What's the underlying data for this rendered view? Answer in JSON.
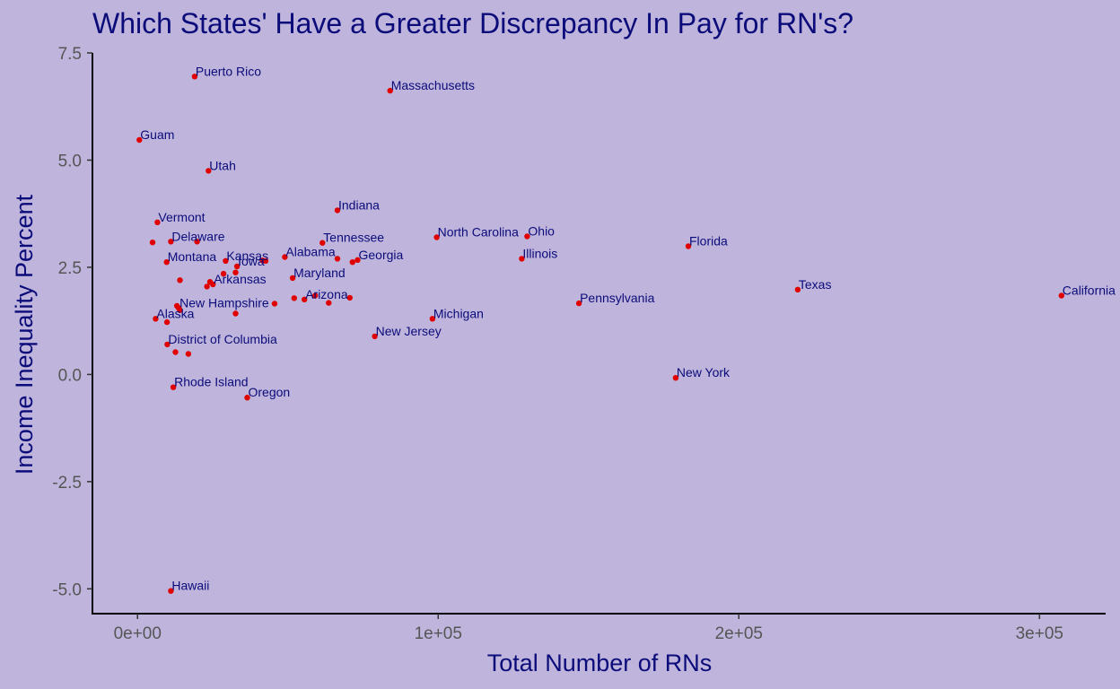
{
  "chart_data": {
    "type": "scatter",
    "title": "Which States' Have a Greater Discrepancy In Pay for RN's?",
    "xlabel": "Total Number of RNs",
    "ylabel": "Income Inequality Percent",
    "xlim": [
      -15000,
      322000
    ],
    "ylim": [
      -5.6,
      7.5
    ],
    "xticks": [
      0,
      100000,
      200000,
      300000
    ],
    "xtick_labels": [
      "0e+00",
      "1e+05",
      "2e+05",
      "3e+05"
    ],
    "yticks": [
      -5.0,
      -2.5,
      0.0,
      2.5,
      5.0,
      7.5
    ],
    "ytick_labels": [
      "-5.0",
      "-2.5",
      "0.0",
      "2.5",
      "5.0",
      "7.5"
    ],
    "grid": false,
    "point_color": "#e00000",
    "label_color": "#0b0b7a",
    "background": "#bfb5dc",
    "points": [
      {
        "label": "Puerto Rico",
        "x": 19000,
        "y": 6.95
      },
      {
        "label": "Massachusetts",
        "x": 84000,
        "y": 6.62
      },
      {
        "label": "Guam",
        "x": 600,
        "y": 5.47
      },
      {
        "label": "Utah",
        "x": 23600,
        "y": 4.75
      },
      {
        "label": "Indiana",
        "x": 66500,
        "y": 3.83
      },
      {
        "label": "Vermont",
        "x": 6600,
        "y": 3.55
      },
      {
        "label": "Delaware",
        "x": 11100,
        "y": 3.1
      },
      {
        "label": "Tennessee",
        "x": 61500,
        "y": 3.07
      },
      {
        "label": "North Carolina",
        "x": 99500,
        "y": 3.2
      },
      {
        "label": "Ohio",
        "x": 129600,
        "y": 3.22
      },
      {
        "label": "Florida",
        "x": 183200,
        "y": 2.99
      },
      {
        "label": "Montana",
        "x": 9700,
        "y": 2.62
      },
      {
        "label": "Kansas",
        "x": 29300,
        "y": 2.65
      },
      {
        "label": "Alabama",
        "x": 49000,
        "y": 2.74
      },
      {
        "label": "Georgia",
        "x": 73200,
        "y": 2.67
      },
      {
        "label": "Illinois",
        "x": 127800,
        "y": 2.7
      },
      {
        "label": "Iowa",
        "x": 33100,
        "y": 2.52
      },
      {
        "label": "Arkansas",
        "x": 25100,
        "y": 2.1
      },
      {
        "label": "Maryland",
        "x": 51600,
        "y": 2.25
      },
      {
        "label": "Texas",
        "x": 219600,
        "y": 1.98
      },
      {
        "label": "California",
        "x": 307300,
        "y": 1.84
      },
      {
        "label": "Arizona",
        "x": 55500,
        "y": 1.75
      },
      {
        "label": "Pennsylvania",
        "x": 146800,
        "y": 1.66
      },
      {
        "label": "New Hampshire",
        "x": 13700,
        "y": 1.55
      },
      {
        "label": "Alaska",
        "x": 6000,
        "y": 1.3
      },
      {
        "label": "Michigan",
        "x": 98100,
        "y": 1.3
      },
      {
        "label": "New Jersey",
        "x": 78900,
        "y": 0.89
      },
      {
        "label": "District of Columbia",
        "x": 9900,
        "y": 0.7
      },
      {
        "label": "New York",
        "x": 179000,
        "y": -0.08
      },
      {
        "label": "Rhode Island",
        "x": 11900,
        "y": -0.3
      },
      {
        "label": "Oregon",
        "x": 36500,
        "y": -0.54
      },
      {
        "label": "Hawaii",
        "x": 11100,
        "y": -5.05
      },
      {
        "label": "",
        "x": 5000,
        "y": 3.08
      },
      {
        "label": "",
        "x": 19800,
        "y": 3.1
      },
      {
        "label": "",
        "x": 14100,
        "y": 2.2
      },
      {
        "label": "",
        "x": 24100,
        "y": 2.16
      },
      {
        "label": "",
        "x": 23100,
        "y": 2.05
      },
      {
        "label": "",
        "x": 28600,
        "y": 2.35
      },
      {
        "label": "",
        "x": 32600,
        "y": 2.38
      },
      {
        "label": "",
        "x": 41600,
        "y": 2.66
      },
      {
        "label": "",
        "x": 42600,
        "y": 2.65
      },
      {
        "label": "",
        "x": 66500,
        "y": 2.7
      },
      {
        "label": "",
        "x": 71500,
        "y": 2.62
      },
      {
        "label": "",
        "x": 13100,
        "y": 1.6
      },
      {
        "label": "",
        "x": 14100,
        "y": 1.5
      },
      {
        "label": "",
        "x": 9800,
        "y": 1.22
      },
      {
        "label": "",
        "x": 32600,
        "y": 1.42
      },
      {
        "label": "",
        "x": 45600,
        "y": 1.65
      },
      {
        "label": "",
        "x": 52100,
        "y": 1.78
      },
      {
        "label": "",
        "x": 59100,
        "y": 1.84
      },
      {
        "label": "",
        "x": 63600,
        "y": 1.67
      },
      {
        "label": "",
        "x": 70600,
        "y": 1.79
      },
      {
        "label": "",
        "x": 12600,
        "y": 0.52
      },
      {
        "label": "",
        "x": 16900,
        "y": 0.48
      }
    ]
  }
}
